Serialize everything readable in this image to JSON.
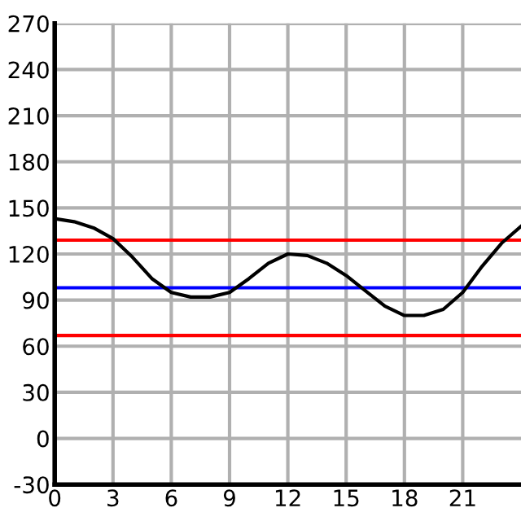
{
  "chart_data": {
    "type": "line",
    "x": [
      0,
      1,
      2,
      3,
      4,
      5,
      6,
      7,
      8,
      9,
      10,
      11,
      12,
      13,
      14,
      15,
      16,
      17,
      18,
      19,
      20,
      21,
      22,
      23,
      24
    ],
    "series": [
      {
        "color": "#000000",
        "values": [
          143,
          141,
          137,
          130,
          118,
          104,
          95,
          92,
          92,
          95,
          104,
          114,
          120,
          119,
          114,
          106,
          96,
          86,
          80,
          80,
          84,
          95,
          112,
          127,
          138
        ]
      }
    ],
    "xlim": [
      0,
      24
    ],
    "xticks": [
      0,
      3,
      6,
      9,
      12,
      15,
      18,
      21
    ],
    "ylim": [
      -30,
      270
    ],
    "yticks": [
      -30,
      0,
      30,
      60,
      90,
      120,
      150,
      180,
      210,
      240,
      270
    ],
    "ref_lines": [
      {
        "axis": "y",
        "value": 129,
        "color": "#ff0000"
      },
      {
        "axis": "y",
        "value": 98,
        "color": "#0000ff"
      },
      {
        "axis": "y",
        "value": 67,
        "color": "#ff0000"
      }
    ],
    "grid": true,
    "legend": false,
    "marker": "none",
    "line_style": "solid"
  }
}
